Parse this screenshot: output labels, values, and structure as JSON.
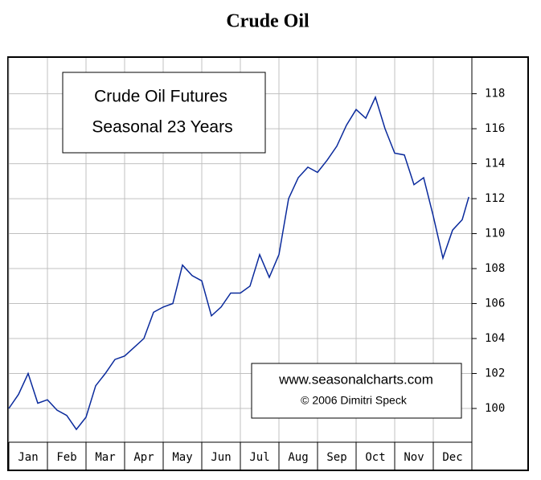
{
  "chart_data": {
    "type": "line",
    "title": "Crude Oil",
    "annotations": [
      "Crude Oil Futures",
      "Seasonal 23 Years",
      "www.seasonalcharts.com",
      "© 2006  Dimitri Speck"
    ],
    "categories": [
      "Jan",
      "Feb",
      "Mar",
      "Apr",
      "May",
      "Jun",
      "Jul",
      "Aug",
      "Sep",
      "Oct",
      "Nov",
      "Dec"
    ],
    "xlim": [
      0,
      12
    ],
    "xticks": [
      0,
      1,
      2,
      3,
      4,
      5,
      6,
      7,
      8,
      9,
      10,
      11,
      12
    ],
    "ylim": [
      98.07,
      120.05
    ],
    "yticks": [
      100,
      102,
      104,
      106,
      108,
      110,
      112,
      114,
      116,
      118
    ],
    "grid": true,
    "series": [
      {
        "color": "#0a2a9c",
        "x": [
          0,
          0.25,
          0.5,
          0.75,
          1,
          1.25,
          1.5,
          1.75,
          2,
          2.25,
          2.5,
          2.75,
          3,
          3.25,
          3.5,
          3.75,
          4,
          4.25,
          4.5,
          4.75,
          5,
          5.25,
          5.5,
          5.75,
          6,
          6.25,
          6.5,
          6.75,
          7,
          7.25,
          7.5,
          7.75,
          8,
          8.25,
          8.5,
          8.75,
          9,
          9.25,
          9.5,
          9.75,
          10,
          10.25,
          10.5,
          10.75,
          11,
          11.25,
          11.5,
          11.75,
          11.92
        ],
        "values": [
          100.0,
          100.8,
          102.0,
          100.3,
          100.5,
          99.9,
          99.6,
          98.8,
          99.5,
          101.3,
          102.0,
          102.8,
          103.0,
          103.5,
          104.0,
          105.5,
          105.8,
          106.0,
          108.2,
          107.6,
          107.3,
          105.3,
          105.8,
          106.6,
          106.6,
          107.0,
          108.8,
          107.5,
          108.8,
          112.0,
          113.2,
          113.8,
          113.5,
          114.2,
          115.0,
          116.2,
          117.1,
          116.6,
          117.8,
          116.0,
          114.6,
          114.5,
          112.8,
          113.2,
          111.0,
          108.6,
          110.2,
          110.8,
          112.1
        ]
      }
    ]
  }
}
